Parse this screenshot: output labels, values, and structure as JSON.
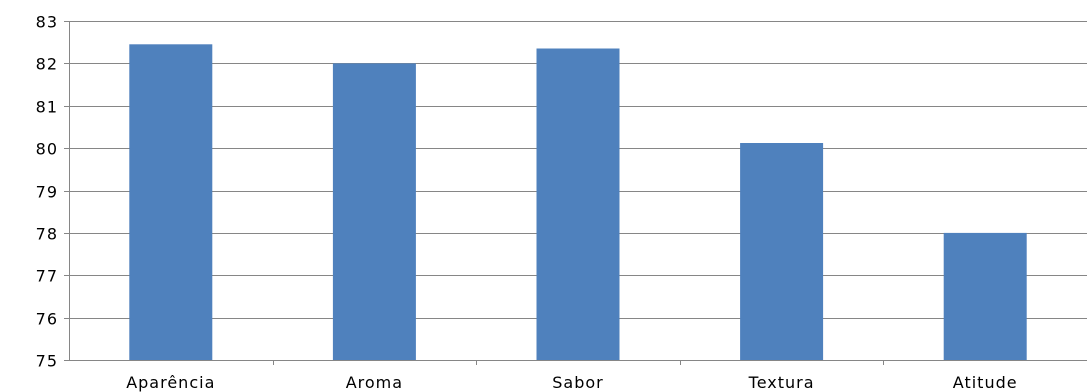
{
  "chart_data": {
    "type": "bar",
    "title": "",
    "xlabel": "",
    "ylabel": "",
    "categories": [
      "Aparência",
      "Aroma",
      "Sabor",
      "Textura",
      "Atitude"
    ],
    "values": [
      82.45,
      82.0,
      82.35,
      80.12,
      78.0
    ],
    "ylim": [
      75,
      83
    ],
    "yticks": [
      "75",
      "76",
      "77",
      "78",
      "79",
      "80",
      "81",
      "82",
      "83"
    ],
    "grid": true,
    "legend": "none",
    "bar_color": "#4F81BD",
    "grid_color": "#868686",
    "axis_color": "#868686"
  }
}
